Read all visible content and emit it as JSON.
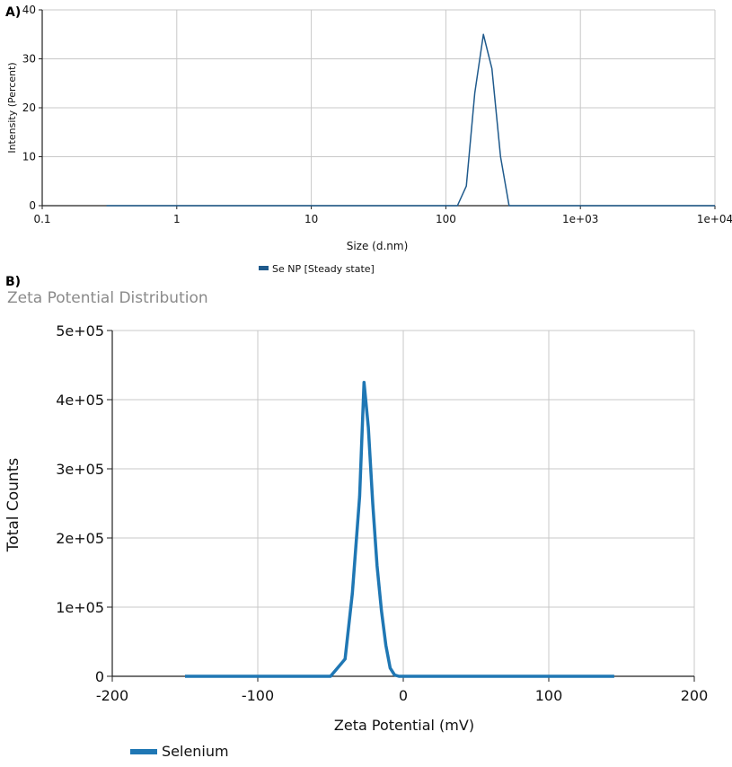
{
  "chart_data": [
    {
      "panel": "A)",
      "type": "line",
      "xscale": "log",
      "xlabel": "Size (d.nm)",
      "ylabel": "Intensity (Percent)",
      "xlim": [
        0.1,
        10000
      ],
      "ylim": [
        0,
        40
      ],
      "xticks": [
        0.1,
        1,
        10,
        100,
        1000,
        10000
      ],
      "xtick_labels": [
        "0.1",
        "1",
        "10",
        "100",
        "1e+03",
        "1e+04"
      ],
      "yticks": [
        0,
        10,
        20,
        30,
        40
      ],
      "ytick_labels": [
        "0",
        "10",
        "20",
        "30",
        "40"
      ],
      "grid": true,
      "legend": "bottom-center",
      "color": "#1f5a8c",
      "series": [
        {
          "name": "Se NP [Steady state]",
          "x": [
            0.3,
            100,
            122,
            142,
            164,
            190,
            220,
            255,
            295,
            340,
            1000,
            10000
          ],
          "y": [
            0,
            0,
            0,
            4,
            23,
            35,
            28,
            10,
            0,
            0,
            0,
            0
          ]
        }
      ]
    },
    {
      "panel": "B)",
      "type": "line",
      "title": "Zeta Potential Distribution",
      "xlabel": "Zeta Potential (mV)",
      "ylabel": "Total Counts",
      "xlim": [
        -200,
        200
      ],
      "ylim": [
        0,
        500000
      ],
      "xticks": [
        -200,
        -100,
        0,
        100,
        200
      ],
      "xtick_labels": [
        "-200",
        "-100",
        "0",
        "100",
        "200"
      ],
      "yticks": [
        0,
        100000,
        200000,
        300000,
        400000,
        500000
      ],
      "ytick_labels": [
        "0",
        "1e+05",
        "2e+05",
        "3e+05",
        "4e+05",
        "5e+05"
      ],
      "grid": true,
      "legend": "bottom-left",
      "color": "#1f77b4",
      "series": [
        {
          "name": "Selenium",
          "x": [
            -150,
            -100,
            -50,
            -40,
            -35,
            -30,
            -27,
            -24,
            -21,
            -18,
            -15,
            -12,
            -9,
            -6,
            -3,
            0,
            50,
            100,
            145
          ],
          "y": [
            0,
            0,
            0,
            25000,
            120000,
            260000,
            425000,
            360000,
            250000,
            160000,
            95000,
            45000,
            12000,
            2000,
            0,
            0,
            0,
            0,
            0
          ]
        }
      ]
    }
  ]
}
